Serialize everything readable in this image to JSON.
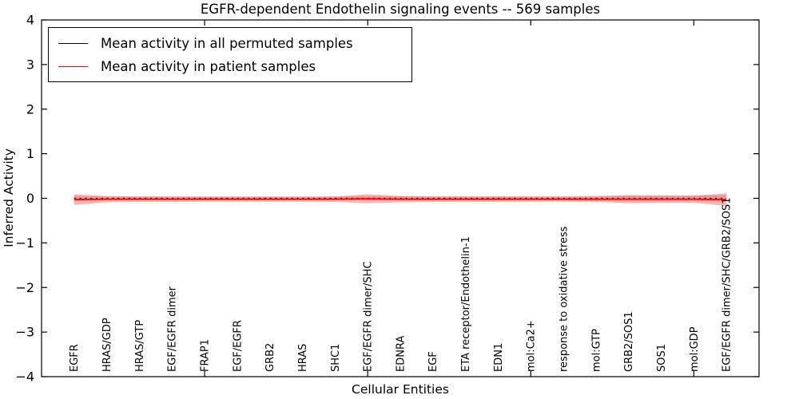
{
  "title": "EGFR-dependent Endothelin signaling events -- 569 samples",
  "legend": {
    "items": [
      {
        "label": "Mean activity in all permuted samples",
        "color": "#000000"
      },
      {
        "label": "Mean activity in patient samples",
        "color": "#ff0000"
      }
    ]
  },
  "chart_data": {
    "type": "line",
    "title": "EGFR-dependent Endothelin signaling events -- 569 samples",
    "xlabel": "Cellular Entities",
    "ylabel": "Inferred Activity",
    "ylim": [
      -4,
      4
    ],
    "xlim": [
      0,
      22
    ],
    "yticks": [
      -4,
      -3,
      -2,
      -1,
      0,
      1,
      2,
      3,
      4
    ],
    "xticks": [
      5,
      10,
      15,
      20
    ],
    "grid": false,
    "legend_position": "upper left",
    "categories": [
      "EGFR",
      "HRAS/GDP",
      "HRAS/GTP",
      "EGF/EGFR dimer",
      "FRAP1",
      "EGF/EGFR",
      "GRB2",
      "HRAS",
      "SHC1",
      "EGF/EGFR dimer/SHC",
      "EDNRA",
      "EGF",
      "ETA receptor/Endothelin-1",
      "EDN1",
      "mol:Ca2+",
      "response to oxidative stress",
      "mol:GTP",
      "GRB2/SOS1",
      "SOS1",
      "mol:GDP",
      "EGF/EGFR dimer/SHC/GRB2/SOS1"
    ],
    "series": [
      {
        "name": "Mean activity in all permuted samples",
        "color": "#000000",
        "line_style": "dotted",
        "band_color": "#999999",
        "band_opacity": 0.35,
        "values": [
          0.0,
          0.0,
          0.0,
          0.0,
          0.0,
          0.0,
          0.0,
          0.0,
          0.0,
          0.0,
          0.0,
          0.0,
          0.0,
          0.0,
          0.0,
          0.0,
          0.0,
          0.0,
          0.0,
          0.0,
          0.0
        ],
        "std": [
          0.05,
          0.04,
          0.04,
          0.04,
          0.04,
          0.04,
          0.04,
          0.04,
          0.04,
          0.05,
          0.05,
          0.05,
          0.05,
          0.05,
          0.05,
          0.05,
          0.06,
          0.06,
          0.06,
          0.06,
          0.07
        ]
      },
      {
        "name": "Mean activity in patient samples",
        "color": "#ff0000",
        "line_style": "solid",
        "band_color": "#ff0000",
        "band_opacity": 0.3,
        "values": [
          -0.03,
          -0.02,
          -0.02,
          -0.02,
          -0.02,
          -0.02,
          -0.02,
          -0.02,
          -0.02,
          -0.01,
          -0.02,
          -0.02,
          -0.02,
          -0.02,
          -0.02,
          -0.02,
          -0.02,
          -0.02,
          -0.02,
          -0.02,
          -0.03
        ],
        "std": [
          0.12,
          0.07,
          0.06,
          0.06,
          0.055,
          0.055,
          0.055,
          0.055,
          0.06,
          0.1,
          0.07,
          0.06,
          0.06,
          0.06,
          0.055,
          0.055,
          0.06,
          0.09,
          0.08,
          0.08,
          0.14
        ]
      }
    ]
  }
}
